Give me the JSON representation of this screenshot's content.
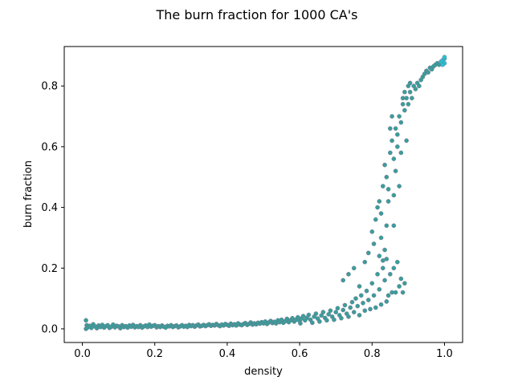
{
  "chart_data": {
    "type": "scatter",
    "title": "The burn fraction for 1000 CA's",
    "xlabel": "density",
    "ylabel": "burn fraction",
    "xlim": [
      -0.05,
      1.05
    ],
    "ylim": [
      -0.045,
      0.93
    ],
    "xticks": [
      {
        "value": 0.0,
        "label": "0.0"
      },
      {
        "value": 0.2,
        "label": "0.2"
      },
      {
        "value": 0.4,
        "label": "0.4"
      },
      {
        "value": 0.6,
        "label": "0.6"
      },
      {
        "value": 0.8,
        "label": "0.8"
      },
      {
        "value": 1.0,
        "label": "1.0"
      }
    ],
    "yticks": [
      {
        "value": 0.0,
        "label": "0.0"
      },
      {
        "value": 0.2,
        "label": "0.2"
      },
      {
        "value": 0.4,
        "label": "0.4"
      },
      {
        "value": 0.6,
        "label": "0.6"
      },
      {
        "value": 0.8,
        "label": "0.8"
      }
    ],
    "grid": false,
    "point_color": "#3a9e9a",
    "highlight_color": "#22c4d4",
    "series": [
      {
        "points": [
          [
            0.01,
            0.0
          ],
          [
            0.01,
            0.028
          ],
          [
            0.012,
            0.012
          ],
          [
            0.015,
            0.005
          ],
          [
            0.02,
            0.01
          ],
          [
            0.025,
            0.003
          ],
          [
            0.03,
            0.015
          ],
          [
            0.035,
            0.008
          ],
          [
            0.04,
            0.002
          ],
          [
            0.045,
            0.011
          ],
          [
            0.05,
            0.006
          ],
          [
            0.055,
            0.013
          ],
          [
            0.06,
            0.004
          ],
          [
            0.065,
            0.009
          ],
          [
            0.07,
            0.012
          ],
          [
            0.075,
            0.003
          ],
          [
            0.08,
            0.007
          ],
          [
            0.085,
            0.014
          ],
          [
            0.09,
            0.005
          ],
          [
            0.095,
            0.01
          ],
          [
            0.1,
            0.008
          ],
          [
            0.105,
            0.002
          ],
          [
            0.11,
            0.012
          ],
          [
            0.115,
            0.006
          ],
          [
            0.12,
            0.009
          ],
          [
            0.125,
            0.004
          ],
          [
            0.13,
            0.011
          ],
          [
            0.135,
            0.007
          ],
          [
            0.14,
            0.013
          ],
          [
            0.145,
            0.005
          ],
          [
            0.15,
            0.009
          ],
          [
            0.155,
            0.006
          ],
          [
            0.16,
            0.012
          ],
          [
            0.165,
            0.004
          ],
          [
            0.17,
            0.008
          ],
          [
            0.175,
            0.011
          ],
          [
            0.18,
            0.006
          ],
          [
            0.185,
            0.014
          ],
          [
            0.19,
            0.007
          ],
          [
            0.195,
            0.01
          ],
          [
            0.2,
            0.012
          ],
          [
            0.205,
            0.005
          ],
          [
            0.21,
            0.009
          ],
          [
            0.215,
            0.006
          ],
          [
            0.22,
            0.011
          ],
          [
            0.225,
            0.007
          ],
          [
            0.23,
            0.004
          ],
          [
            0.235,
            0.01
          ],
          [
            0.24,
            0.008
          ],
          [
            0.245,
            0.012
          ],
          [
            0.25,
            0.006
          ],
          [
            0.255,
            0.009
          ],
          [
            0.26,
            0.011
          ],
          [
            0.265,
            0.005
          ],
          [
            0.27,
            0.008
          ],
          [
            0.275,
            0.012
          ],
          [
            0.28,
            0.007
          ],
          [
            0.285,
            0.01
          ],
          [
            0.29,
            0.006
          ],
          [
            0.295,
            0.013
          ],
          [
            0.3,
            0.009
          ],
          [
            0.305,
            0.012
          ],
          [
            0.31,
            0.007
          ],
          [
            0.315,
            0.011
          ],
          [
            0.32,
            0.014
          ],
          [
            0.325,
            0.008
          ],
          [
            0.33,
            0.01
          ],
          [
            0.335,
            0.013
          ],
          [
            0.34,
            0.009
          ],
          [
            0.345,
            0.012
          ],
          [
            0.35,
            0.015
          ],
          [
            0.355,
            0.01
          ],
          [
            0.36,
            0.013
          ],
          [
            0.365,
            0.011
          ],
          [
            0.37,
            0.016
          ],
          [
            0.375,
            0.012
          ],
          [
            0.38,
            0.009
          ],
          [
            0.385,
            0.014
          ],
          [
            0.39,
            0.011
          ],
          [
            0.395,
            0.016
          ],
          [
            0.4,
            0.013
          ],
          [
            0.405,
            0.01
          ],
          [
            0.41,
            0.017
          ],
          [
            0.415,
            0.012
          ],
          [
            0.42,
            0.015
          ],
          [
            0.425,
            0.011
          ],
          [
            0.43,
            0.018
          ],
          [
            0.435,
            0.014
          ],
          [
            0.44,
            0.012
          ],
          [
            0.445,
            0.016
          ],
          [
            0.45,
            0.019
          ],
          [
            0.455,
            0.013
          ],
          [
            0.46,
            0.016
          ],
          [
            0.465,
            0.021
          ],
          [
            0.47,
            0.014
          ],
          [
            0.475,
            0.018
          ],
          [
            0.48,
            0.015
          ],
          [
            0.485,
            0.02
          ],
          [
            0.49,
            0.017
          ],
          [
            0.495,
            0.022
          ],
          [
            0.5,
            0.018
          ],
          [
            0.505,
            0.024
          ],
          [
            0.51,
            0.016
          ],
          [
            0.515,
            0.021
          ],
          [
            0.52,
            0.026
          ],
          [
            0.525,
            0.019
          ],
          [
            0.53,
            0.023
          ],
          [
            0.535,
            0.018
          ],
          [
            0.54,
            0.028
          ],
          [
            0.545,
            0.022
          ],
          [
            0.55,
            0.03
          ],
          [
            0.555,
            0.02
          ],
          [
            0.56,
            0.025
          ],
          [
            0.565,
            0.033
          ],
          [
            0.57,
            0.022
          ],
          [
            0.575,
            0.028
          ],
          [
            0.58,
            0.035
          ],
          [
            0.585,
            0.024
          ],
          [
            0.59,
            0.03
          ],
          [
            0.595,
            0.038
          ],
          [
            0.6,
            0.026
          ],
          [
            0.602,
            0.018
          ],
          [
            0.605,
            0.034
          ],
          [
            0.61,
            0.042
          ],
          [
            0.615,
            0.028
          ],
          [
            0.62,
            0.036
          ],
          [
            0.625,
            0.046
          ],
          [
            0.63,
            0.03
          ],
          [
            0.635,
            0.02
          ],
          [
            0.64,
            0.04
          ],
          [
            0.645,
            0.05
          ],
          [
            0.65,
            0.034
          ],
          [
            0.655,
            0.024
          ],
          [
            0.66,
            0.044
          ],
          [
            0.665,
            0.055
          ],
          [
            0.67,
            0.036
          ],
          [
            0.675,
            0.028
          ],
          [
            0.68,
            0.048
          ],
          [
            0.685,
            0.06
          ],
          [
            0.69,
            0.04
          ],
          [
            0.695,
            0.03
          ],
          [
            0.7,
            0.055
          ],
          [
            0.705,
            0.068
          ],
          [
            0.71,
            0.045
          ],
          [
            0.715,
            0.035
          ],
          [
            0.72,
            0.062
          ],
          [
            0.725,
            0.078
          ],
          [
            0.73,
            0.05
          ],
          [
            0.735,
            0.04
          ],
          [
            0.74,
            0.07
          ],
          [
            0.745,
            0.088
          ],
          [
            0.75,
            0.055
          ],
          [
            0.755,
            0.1
          ],
          [
            0.76,
            0.075
          ],
          [
            0.765,
            0.045
          ],
          [
            0.77,
            0.11
          ],
          [
            0.775,
            0.085
          ],
          [
            0.78,
            0.06
          ],
          [
            0.785,
            0.125
          ],
          [
            0.79,
            0.095
          ],
          [
            0.795,
            0.065
          ],
          [
            0.8,
            0.15
          ],
          [
            0.805,
            0.11
          ],
          [
            0.81,
            0.07
          ],
          [
            0.815,
            0.18
          ],
          [
            0.82,
            0.13
          ],
          [
            0.825,
            0.08
          ],
          [
            0.83,
            0.225
          ],
          [
            0.835,
            0.16
          ],
          [
            0.84,
            0.09
          ],
          [
            0.845,
            0.11
          ],
          [
            0.85,
            0.18
          ],
          [
            0.855,
            0.12
          ],
          [
            0.86,
            0.2
          ],
          [
            0.865,
            0.12
          ],
          [
            0.87,
            0.22
          ],
          [
            0.875,
            0.14
          ],
          [
            0.88,
            0.165
          ],
          [
            0.885,
            0.12
          ],
          [
            0.89,
            0.15
          ],
          [
            0.72,
            0.16
          ],
          [
            0.735,
            0.18
          ],
          [
            0.75,
            0.2
          ],
          [
            0.765,
            0.14
          ],
          [
            0.78,
            0.22
          ],
          [
            0.79,
            0.25
          ],
          [
            0.8,
            0.32
          ],
          [
            0.805,
            0.28
          ],
          [
            0.81,
            0.36
          ],
          [
            0.815,
            0.4
          ],
          [
            0.82,
            0.42
          ],
          [
            0.825,
            0.38
          ],
          [
            0.83,
            0.47
          ],
          [
            0.835,
            0.54
          ],
          [
            0.84,
            0.5
          ],
          [
            0.845,
            0.46
          ],
          [
            0.85,
            0.58
          ],
          [
            0.855,
            0.62
          ],
          [
            0.86,
            0.56
          ],
          [
            0.865,
            0.66
          ],
          [
            0.87,
            0.64
          ],
          [
            0.875,
            0.7
          ],
          [
            0.88,
            0.68
          ],
          [
            0.885,
            0.74
          ],
          [
            0.89,
            0.72
          ],
          [
            0.895,
            0.76
          ],
          [
            0.9,
            0.74
          ],
          [
            0.905,
            0.78
          ],
          [
            0.91,
            0.76
          ],
          [
            0.915,
            0.8
          ],
          [
            0.92,
            0.79
          ],
          [
            0.925,
            0.81
          ],
          [
            0.93,
            0.8
          ],
          [
            0.935,
            0.82
          ],
          [
            0.94,
            0.83
          ],
          [
            0.945,
            0.84
          ],
          [
            0.95,
            0.85
          ],
          [
            0.955,
            0.845
          ],
          [
            0.96,
            0.86
          ],
          [
            0.965,
            0.855
          ],
          [
            0.97,
            0.865
          ],
          [
            0.975,
            0.87
          ],
          [
            0.98,
            0.875
          ],
          [
            0.985,
            0.87
          ],
          [
            0.99,
            0.88
          ],
          [
            0.995,
            0.885
          ],
          [
            1.0,
            0.89
          ],
          [
            1.0,
            0.875
          ],
          [
            1.0,
            0.895
          ],
          [
            0.995,
            0.87
          ],
          [
            0.86,
            0.34
          ],
          [
            0.865,
            0.52
          ],
          [
            0.87,
            0.6
          ],
          [
            0.875,
            0.47
          ],
          [
            0.88,
            0.58
          ],
          [
            0.885,
            0.76
          ],
          [
            0.89,
            0.78
          ],
          [
            0.895,
            0.62
          ],
          [
            0.9,
            0.8
          ],
          [
            0.905,
            0.81
          ],
          [
            0.84,
            0.34
          ],
          [
            0.845,
            0.42
          ],
          [
            0.85,
            0.66
          ],
          [
            0.855,
            0.7
          ],
          [
            0.86,
            0.44
          ],
          [
            0.82,
            0.24
          ],
          [
            0.825,
            0.3
          ],
          [
            0.83,
            0.2
          ],
          [
            0.835,
            0.26
          ],
          [
            0.84,
            0.23
          ]
        ]
      }
    ]
  }
}
